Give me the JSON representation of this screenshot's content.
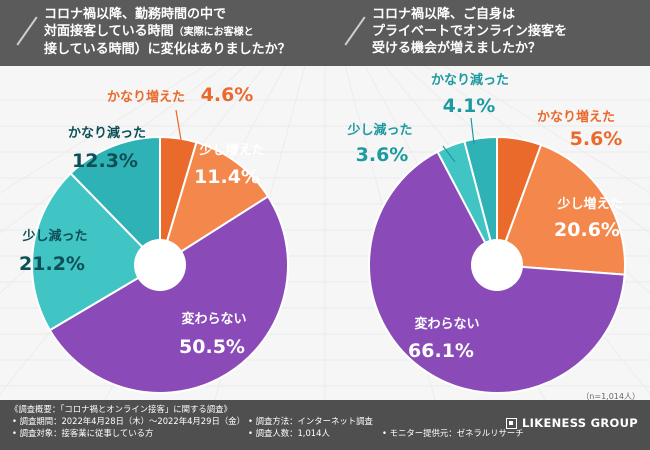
{
  "header": {
    "q1": {
      "lines": [
        "コロナ禍以降、勤務時間の中で",
        "対面接客している時間",
        "接している時間）に変化はありましたか？"
      ],
      "line2_small": "（実際にお客様と"
    },
    "q2": {
      "lines": [
        "コロナ禍以降、ご自身は",
        "プライベートでオンライン接客を",
        "受ける機会が増えましたか？"
      ]
    }
  },
  "colors": {
    "かなり増えた": "#ea6a2c",
    "少し増えた": "#f4874b",
    "変わらない": "#8a4bb8",
    "少し減った": "#41c4c4",
    "かなり減った": "#2fb2b6"
  },
  "chart_data": [
    {
      "type": "pie",
      "title": "コロナ禍以降、勤務時間の中で対面接客している時間（実際にお客様と接している時間）に変化はありましたか？",
      "slices": [
        {
          "label": "かなり増えた",
          "value": 4.6,
          "display": "4.6%"
        },
        {
          "label": "少し増えた",
          "value": 11.4,
          "display": "11.4%"
        },
        {
          "label": "変わらない",
          "value": 50.5,
          "display": "50.5%"
        },
        {
          "label": "少し減った",
          "value": 21.2,
          "display": "21.2%"
        },
        {
          "label": "かなり減った",
          "value": 12.3,
          "display": "12.3%"
        }
      ]
    },
    {
      "type": "pie",
      "title": "コロナ禍以降、ご自身はプライベートでオンライン接客を受ける機会が増えましたか？",
      "slices": [
        {
          "label": "かなり増えた",
          "value": 5.6,
          "display": "5.6%"
        },
        {
          "label": "少し増えた",
          "value": 20.6,
          "display": "20.6%"
        },
        {
          "label": "変わらない",
          "value": 66.1,
          "display": "66.1%"
        },
        {
          "label": "少し減った",
          "value": 3.6,
          "display": "3.6%"
        },
        {
          "label": "かなり減った",
          "value": 4.1,
          "display": "4.1%"
        }
      ]
    }
  ],
  "sample_note": "（n=1,014人）",
  "footer": {
    "overview": "《調査概要：「コロナ禍とオンライン接客」に関する調査》",
    "period": "• 調査期間：2022年4月28日（木）～2022年4月29日（金）",
    "target": "• 調査対象：接客業に従事している方",
    "method": "• 調査方法：インターネット調査",
    "count": "• 調査人数：1,014人",
    "provider": "• モニター提供元：ゼネラルリサーチ",
    "logo": "LIKENESS GROUP"
  }
}
